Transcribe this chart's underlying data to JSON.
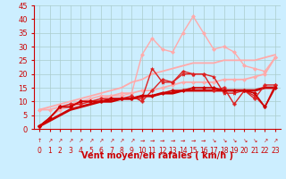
{
  "bg_color": "#cceeff",
  "grid_color": "#aacccc",
  "xlabel": "Vent moyen/en rafales ( km/h )",
  "xlabel_color": "#cc0000",
  "xlabel_fontsize": 7,
  "tick_color": "#cc0000",
  "tick_fontsize": 5.5,
  "ytick_fontsize": 6,
  "xlim": [
    -0.5,
    23.5
  ],
  "ylim": [
    0,
    45
  ],
  "yticks": [
    0,
    5,
    10,
    15,
    20,
    25,
    30,
    35,
    40,
    45
  ],
  "xticks": [
    0,
    1,
    2,
    3,
    4,
    5,
    6,
    7,
    8,
    9,
    10,
    11,
    12,
    13,
    14,
    15,
    16,
    17,
    18,
    19,
    20,
    21,
    22,
    23
  ],
  "x": [
    0,
    1,
    2,
    3,
    4,
    5,
    6,
    7,
    8,
    9,
    10,
    11,
    12,
    13,
    14,
    15,
    16,
    17,
    18,
    19,
    20,
    21,
    22,
    23
  ],
  "series": [
    {
      "y": [
        1,
        4,
        7,
        8,
        9,
        10,
        11,
        12,
        12,
        13,
        27,
        33,
        29,
        28,
        35,
        41,
        35,
        29,
        30,
        28,
        23,
        22,
        21,
        26
      ],
      "color": "#ffaaaa",
      "lw": 1.0,
      "marker": "D",
      "ms": 2.0,
      "zorder": 3
    },
    {
      "y": [
        7,
        8,
        9,
        10,
        11,
        12,
        13,
        14,
        15,
        17,
        18,
        20,
        21,
        22,
        23,
        24,
        24,
        24,
        25,
        25,
        25,
        25,
        26,
        27
      ],
      "color": "#ffaaaa",
      "lw": 1.3,
      "marker": null,
      "ms": 0,
      "zorder": 3
    },
    {
      "y": [
        7,
        7,
        8,
        9,
        10,
        11,
        12,
        12,
        13,
        13,
        14,
        14,
        15,
        16,
        17,
        17,
        17,
        17,
        18,
        18,
        18,
        19,
        20,
        26
      ],
      "color": "#ffaaaa",
      "lw": 1.3,
      "marker": "D",
      "ms": 2.0,
      "zorder": 3
    },
    {
      "y": [
        1,
        4,
        8,
        9,
        9,
        10,
        10,
        11,
        11,
        11,
        11,
        22,
        17,
        17,
        20,
        20,
        20,
        19,
        13,
        13,
        14,
        12,
        8,
        16
      ],
      "color": "#dd2222",
      "lw": 1.0,
      "marker": "*",
      "ms": 3.0,
      "zorder": 5
    },
    {
      "y": [
        1,
        4,
        8,
        8,
        10,
        10,
        11,
        11,
        11,
        12,
        10,
        14,
        18,
        17,
        21,
        20,
        20,
        14,
        15,
        9,
        14,
        11,
        16,
        16
      ],
      "color": "#dd2222",
      "lw": 1.0,
      "marker": "P",
      "ms": 2.5,
      "zorder": 5
    },
    {
      "y": [
        1,
        4,
        8,
        8,
        10,
        10,
        10,
        11,
        11,
        11,
        12,
        12,
        13,
        14,
        14,
        15,
        15,
        15,
        14,
        14,
        14,
        13,
        8,
        15
      ],
      "color": "#cc0000",
      "lw": 1.2,
      "marker": "D",
      "ms": 2.0,
      "zorder": 6
    },
    {
      "y": [
        1,
        3,
        5,
        7,
        8,
        9,
        10,
        10,
        11,
        11,
        12,
        12,
        13,
        13,
        14,
        14,
        14,
        14,
        14,
        14,
        14,
        14,
        15,
        15
      ],
      "color": "#cc0000",
      "lw": 2.0,
      "marker": null,
      "ms": 0,
      "zorder": 4
    }
  ],
  "arrow_chars": [
    "↑",
    "↗",
    "↗",
    "↗",
    "↗",
    "↗",
    "↗",
    "↗",
    "↗",
    "↗",
    "→",
    "→",
    "→",
    "→",
    "→",
    "→",
    "→",
    "↘",
    "↘",
    "↘",
    "↘",
    "↘",
    "↗",
    "↗"
  ]
}
